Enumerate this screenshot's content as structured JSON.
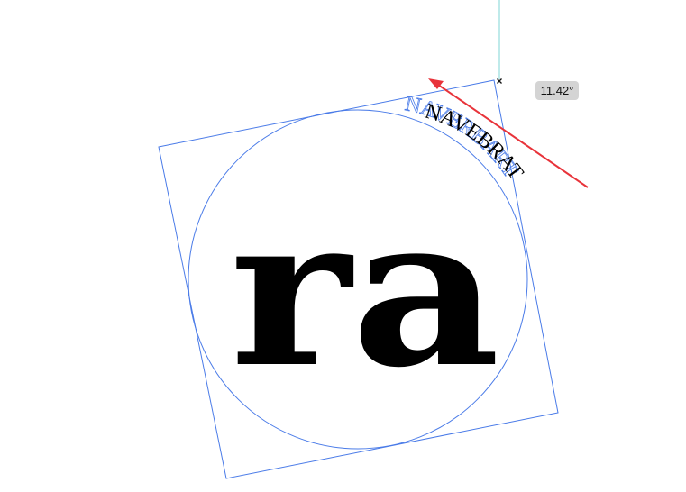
{
  "canvas": {
    "selection_color": "#4a7be8",
    "guide_color": "#7fd6d6",
    "arrow_color": "#e8333a"
  },
  "rotation_readout": {
    "value": "11.42°"
  },
  "artwork": {
    "main_text": "ra",
    "curved_text_black": "NAVEBRAT",
    "curved_text_blue": "NAVERBART"
  }
}
